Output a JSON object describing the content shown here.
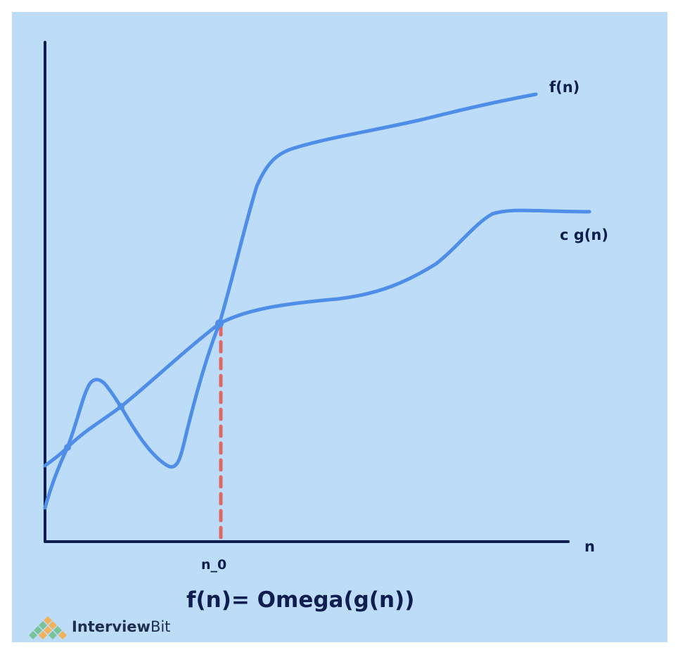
{
  "diagram": {
    "curve_labels": {
      "f": "f(n)",
      "g": "c g(n)"
    },
    "x_axis_label": "n",
    "threshold_label": "n_0",
    "formula": "f(n)= Omega(g(n))"
  },
  "brand": {
    "name_bold": "Interview",
    "name_regular": "Bit"
  },
  "colors": {
    "background": "#bcdcf8",
    "curve": "#4f8ee8",
    "axis": "#0f1e4f",
    "threshold_line": "#e06666"
  }
}
